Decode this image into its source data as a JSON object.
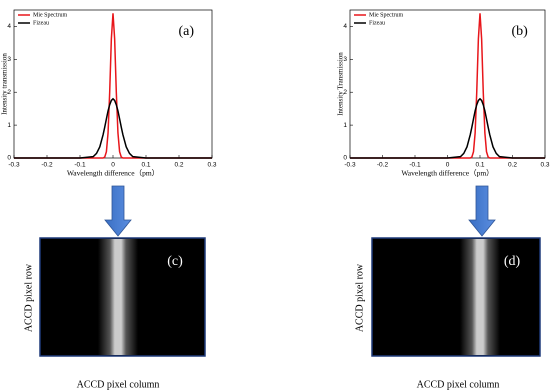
{
  "chart_data": [
    {
      "type": "line",
      "annotation": "(a)",
      "x_label": "Wavelength difference（pm）",
      "y_label": "Intensity transmission",
      "x": [
        -0.3,
        -0.1,
        -0.06,
        -0.05,
        -0.04,
        -0.03,
        -0.025,
        -0.02,
        -0.015,
        -0.01,
        -0.005,
        0,
        0.005,
        0.01,
        0.015,
        0.02,
        0.025,
        0.03,
        0.04,
        0.05,
        0.06,
        0.1,
        0.3
      ],
      "series": [
        {
          "name": "Mie Spectrum",
          "color": "#e8161b",
          "values": [
            0,
            0,
            0,
            0,
            0,
            0,
            0.03,
            0.19,
            0.76,
            2.01,
            3.62,
            4.4,
            3.62,
            2.01,
            0.76,
            0.19,
            0.03,
            0,
            0,
            0,
            0,
            0,
            0
          ]
        },
        {
          "name": "Fizeau",
          "color": "#000000",
          "values": [
            0,
            0,
            0.04,
            0.14,
            0.34,
            0.71,
            0.94,
            1.19,
            1.43,
            1.62,
            1.75,
            1.8,
            1.75,
            1.62,
            1.43,
            1.19,
            0.94,
            0.71,
            0.34,
            0.14,
            0.04,
            0,
            0
          ]
        }
      ],
      "xlim": [
        -0.3,
        0.3
      ],
      "xticks": [
        -0.3,
        -0.2,
        -0.1,
        0,
        0.1,
        0.2,
        0.3
      ],
      "ylim": [
        0,
        4.5
      ],
      "yticks": [
        0,
        1,
        2,
        3,
        4
      ],
      "legend": "upper left"
    },
    {
      "type": "line",
      "annotation": "(b)",
      "x_label": "Wavelength difference（pm）",
      "y_label": "Intensity Transmission",
      "x": [
        -0.3,
        0,
        0.04,
        0.05,
        0.06,
        0.07,
        0.075,
        0.08,
        0.085,
        0.09,
        0.095,
        0.1,
        0.105,
        0.11,
        0.115,
        0.12,
        0.125,
        0.13,
        0.14,
        0.15,
        0.16,
        0.2,
        0.3
      ],
      "series": [
        {
          "name": "Mie Spectrum",
          "color": "#e8161b",
          "values": [
            0,
            0,
            0,
            0,
            0,
            0,
            0.03,
            0.19,
            0.76,
            2.01,
            3.62,
            4.4,
            3.62,
            2.01,
            0.76,
            0.19,
            0.03,
            0,
            0,
            0,
            0,
            0,
            0
          ]
        },
        {
          "name": "Fizeau",
          "color": "#000000",
          "values": [
            0,
            0,
            0.04,
            0.14,
            0.34,
            0.71,
            0.94,
            1.19,
            1.43,
            1.62,
            1.75,
            1.8,
            1.75,
            1.62,
            1.43,
            1.19,
            0.94,
            0.71,
            0.34,
            0.14,
            0.04,
            0,
            0
          ]
        }
      ],
      "xlim": [
        -0.3,
        0.3
      ],
      "xticks": [
        -0.3,
        -0.2,
        -0.1,
        0,
        0.1,
        0.2,
        0.3
      ],
      "ylim": [
        0,
        4.5
      ],
      "yticks": [
        0,
        1,
        2,
        3,
        4
      ],
      "legend": "upper left"
    }
  ],
  "images": [
    {
      "label": "(c)",
      "row_label": "ACCD pixel row",
      "column_label": "ACCD pixel column"
    },
    {
      "label": "(d)",
      "row_label": "ACCD pixel row",
      "column_label": "ACCD pixel column"
    }
  ]
}
